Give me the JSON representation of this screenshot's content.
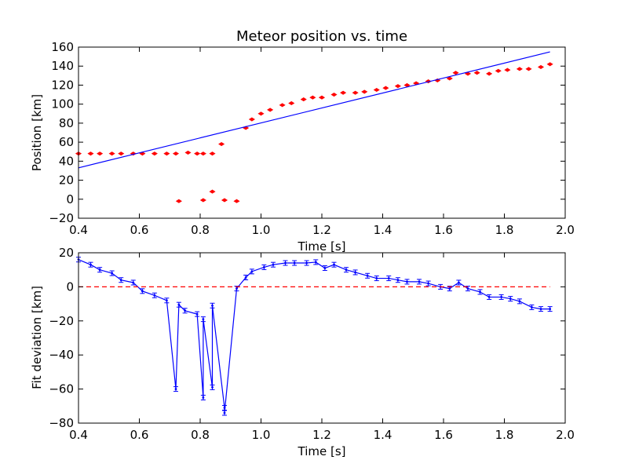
{
  "colors": {
    "background": "#ffffff",
    "axes": "#000000",
    "model_line": "#0000ff",
    "observed_points": "#ff0000",
    "residual_line": "#0000ff",
    "zero_line": "#ff0000"
  },
  "chart_data": [
    {
      "type": "scatter",
      "title": "Meteor position vs. time",
      "xlabel": "Time [s]",
      "ylabel": "Position [km]",
      "xlim": [
        0.4,
        2.0
      ],
      "ylim": [
        -20,
        160
      ],
      "xticks": [
        "0.4",
        "0.6",
        "0.8",
        "1.0",
        "1.2",
        "1.4",
        "1.6",
        "1.8",
        "2.0"
      ],
      "yticks": [
        "−20",
        "0",
        "20",
        "40",
        "60",
        "80",
        "100",
        "120",
        "140",
        "160"
      ],
      "grid": false,
      "series": [
        {
          "kind": "points",
          "color": "#ff0000",
          "marker": "diamond",
          "x": [
            0.4,
            0.44,
            0.47,
            0.51,
            0.54,
            0.58,
            0.61,
            0.65,
            0.69,
            0.72,
            0.73,
            0.76,
            0.79,
            0.81,
            0.81,
            0.84,
            0.84,
            0.87,
            0.88,
            0.92,
            0.95,
            0.97,
            1.0,
            1.03,
            1.07,
            1.1,
            1.14,
            1.17,
            1.2,
            1.24,
            1.27,
            1.31,
            1.34,
            1.38,
            1.41,
            1.45,
            1.48,
            1.51,
            1.55,
            1.58,
            1.62,
            1.64,
            1.68,
            1.71,
            1.75,
            1.78,
            1.81,
            1.85,
            1.88,
            1.92,
            1.95
          ],
          "y": [
            48,
            48,
            48,
            48,
            48,
            48,
            48,
            48,
            48,
            48,
            -2,
            49,
            48,
            48,
            -1,
            48,
            8,
            58,
            -1,
            -2,
            75,
            84,
            90,
            94,
            99,
            101,
            105,
            107,
            107,
            110,
            112,
            112,
            113,
            115,
            117,
            119,
            120,
            122,
            124,
            125,
            127,
            133,
            132,
            133,
            132,
            135,
            136,
            137,
            137,
            139,
            142
          ]
        },
        {
          "kind": "line",
          "color": "#0000ff",
          "x": [
            0.4,
            1.95
          ],
          "y": [
            33,
            155
          ]
        }
      ]
    },
    {
      "type": "line",
      "title": "",
      "xlabel": "Time [s]",
      "ylabel": "Fit deviation [km]",
      "xlim": [
        0.4,
        2.0
      ],
      "ylim": [
        -80,
        20
      ],
      "xticks": [
        "0.4",
        "0.6",
        "0.8",
        "1.0",
        "1.2",
        "1.4",
        "1.6",
        "1.8",
        "2.0"
      ],
      "yticks": [
        "−80",
        "−60",
        "−40",
        "−20",
        "0",
        "20"
      ],
      "grid": false,
      "series": [
        {
          "kind": "line_errorbars",
          "color": "#0000ff",
          "x": [
            0.4,
            0.44,
            0.47,
            0.51,
            0.54,
            0.58,
            0.61,
            0.65,
            0.69,
            0.72,
            0.73,
            0.75,
            0.79,
            0.81,
            0.81,
            0.84,
            0.84,
            0.88,
            0.88,
            0.92,
            0.95,
            0.97,
            1.01,
            1.04,
            1.08,
            1.11,
            1.15,
            1.18,
            1.21,
            1.24,
            1.28,
            1.31,
            1.35,
            1.38,
            1.42,
            1.45,
            1.48,
            1.52,
            1.55,
            1.59,
            1.62,
            1.65,
            1.68,
            1.72,
            1.75,
            1.79,
            1.82,
            1.85,
            1.89,
            1.92,
            1.95
          ],
          "y": [
            16,
            13,
            10,
            8,
            4,
            2.5,
            -2.5,
            -5,
            -8,
            -60,
            -10.5,
            -14,
            -16,
            -65,
            -19,
            -59,
            -11,
            -71,
            -74,
            -1,
            5.5,
            9,
            11.5,
            13,
            14,
            14,
            14,
            14.5,
            11,
            13,
            10,
            8.5,
            6.5,
            5,
            5,
            4,
            3,
            3,
            2,
            0,
            -1,
            2.5,
            -1,
            -3,
            -6,
            -6,
            -7,
            -8.5,
            -12,
            -13,
            -13
          ]
        },
        {
          "kind": "reference",
          "color": "#ff0000",
          "style": "dashed",
          "x": [
            0.4,
            1.95
          ],
          "y": [
            0,
            0
          ]
        }
      ]
    }
  ]
}
